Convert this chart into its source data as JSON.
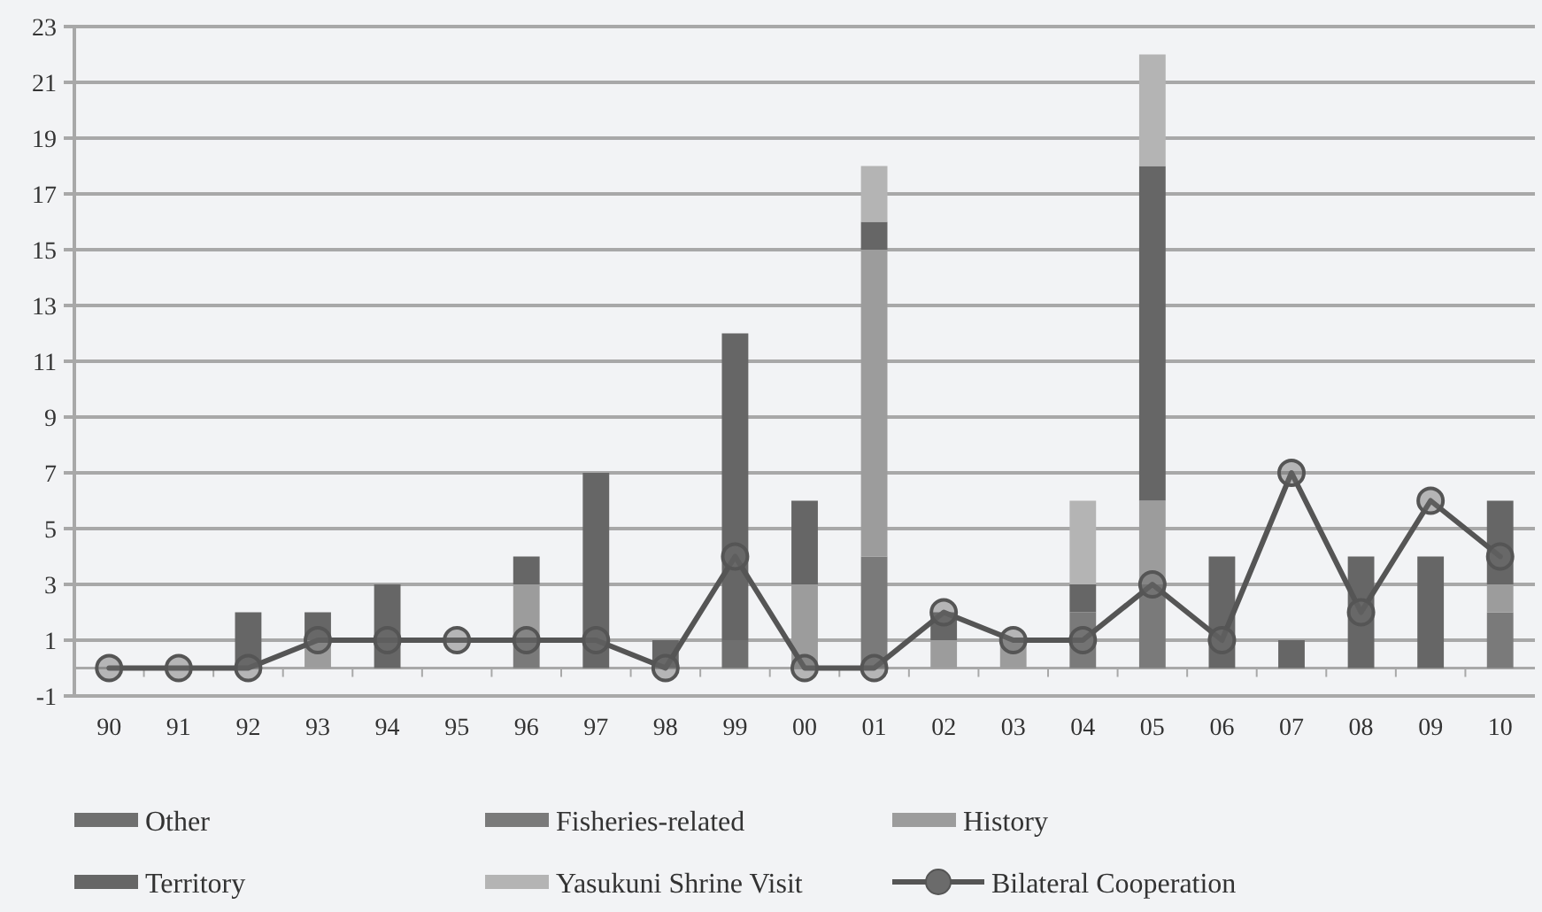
{
  "chart_data": {
    "type": "bar",
    "stacked": true,
    "categories": [
      "90",
      "91",
      "92",
      "93",
      "94",
      "95",
      "96",
      "97",
      "98",
      "99",
      "00",
      "01",
      "02",
      "03",
      "04",
      "05",
      "06",
      "07",
      "08",
      "09",
      "10"
    ],
    "series": [
      {
        "name": "Other",
        "color": "#6f6f6f",
        "values": [
          0,
          0,
          0,
          0,
          0,
          0,
          0,
          0,
          0,
          1,
          0,
          0,
          0,
          0,
          0,
          0,
          0,
          0,
          0,
          0,
          0
        ]
      },
      {
        "name": "Fisheries-related",
        "color": "#7a7a7a",
        "values": [
          0,
          0,
          0,
          0,
          0,
          0,
          1,
          0,
          0,
          0,
          0,
          4,
          0,
          0,
          2,
          3,
          0,
          0,
          0,
          0,
          2
        ]
      },
      {
        "name": "History",
        "color": "#9c9c9c",
        "values": [
          0,
          0,
          0,
          1,
          0,
          0,
          2,
          0,
          0,
          0,
          3,
          11,
          1,
          1,
          0,
          3,
          0,
          0,
          0,
          0,
          1
        ]
      },
      {
        "name": "Territory",
        "color": "#666666",
        "values": [
          0,
          0,
          2,
          1,
          3,
          0,
          1,
          7,
          1,
          11,
          3,
          1,
          1,
          0,
          1,
          12,
          4,
          1,
          4,
          4,
          3
        ]
      },
      {
        "name": "Yasukuni Shrine Visit",
        "color": "#b4b4b4",
        "values": [
          0,
          0,
          0,
          0,
          0,
          0,
          0,
          0,
          0,
          0,
          0,
          2,
          0,
          0,
          3,
          4,
          0,
          0,
          0,
          0,
          0
        ]
      },
      {
        "name": "Bilateral Cooperation",
        "type": "line",
        "color": "#555555",
        "marker": "circle",
        "values": [
          0,
          0,
          0,
          1,
          1,
          1,
          1,
          1,
          0,
          4,
          0,
          0,
          2,
          1,
          1,
          3,
          1,
          7,
          2,
          6,
          4
        ]
      }
    ],
    "ylim": [
      -1,
      23
    ],
    "yticks": [
      -1,
      1,
      3,
      5,
      7,
      9,
      11,
      13,
      15,
      17,
      19,
      21,
      23
    ],
    "grid": "y",
    "legend": "bottom"
  }
}
